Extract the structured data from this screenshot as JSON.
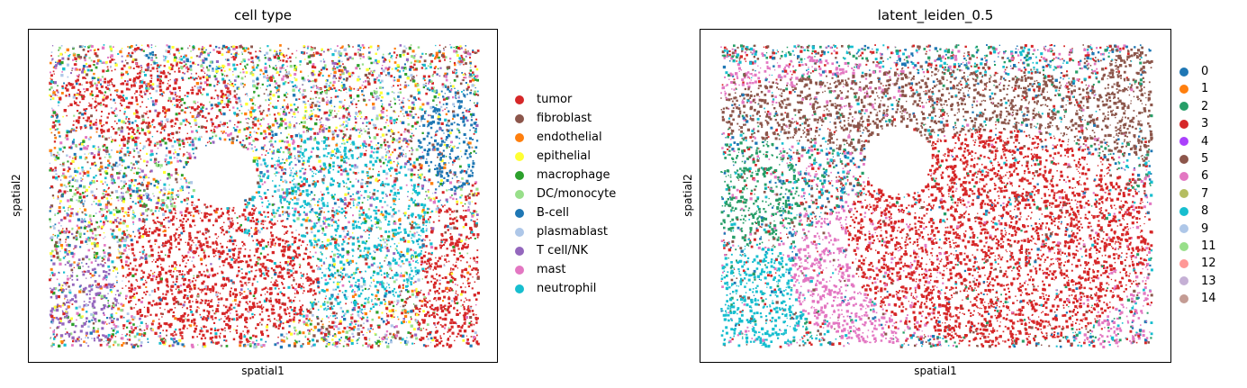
{
  "chart_data": [
    {
      "type": "scatter",
      "title": "cell type",
      "xlabel": "spatial1",
      "ylabel": "spatial2",
      "grid": false,
      "ticks": false,
      "legend_placement": "right, outside",
      "legend": [
        {
          "label": "tumor",
          "color": "#d62728"
        },
        {
          "label": "fibroblast",
          "color": "#8c564b"
        },
        {
          "label": "endothelial",
          "color": "#ff7f0e"
        },
        {
          "label": "epithelial",
          "color": "#ffff33"
        },
        {
          "label": "macrophage",
          "color": "#2ca02c"
        },
        {
          "label": "DC/monocyte",
          "color": "#98df8a"
        },
        {
          "label": "B-cell",
          "color": "#1f77b4"
        },
        {
          "label": "plasmablast",
          "color": "#aec7e8"
        },
        {
          "label": "T cell/NK",
          "color": "#9467bd"
        },
        {
          "label": "mast",
          "color": "#e377c2"
        },
        {
          "label": "neutrophil",
          "color": "#17becf"
        }
      ]
    },
    {
      "type": "scatter",
      "title": "latent_leiden_0.5",
      "xlabel": "spatial1",
      "ylabel": "spatial2",
      "grid": false,
      "ticks": false,
      "legend_placement": "right, outside",
      "legend": [
        {
          "label": "0",
          "color": "#1f77b4"
        },
        {
          "label": "1",
          "color": "#ff7f0e"
        },
        {
          "label": "2",
          "color": "#279e68"
        },
        {
          "label": "3",
          "color": "#d62728"
        },
        {
          "label": "4",
          "color": "#aa40fc"
        },
        {
          "label": "5",
          "color": "#8c564b"
        },
        {
          "label": "6",
          "color": "#e377c2"
        },
        {
          "label": "7",
          "color": "#b5bd61"
        },
        {
          "label": "8",
          "color": "#17becf"
        },
        {
          "label": "9",
          "color": "#aec7e8"
        },
        {
          "label": "11",
          "color": "#98df8a"
        },
        {
          "label": "12",
          "color": "#ff9896"
        },
        {
          "label": "13",
          "color": "#c5b0d5"
        },
        {
          "label": "14",
          "color": "#c49c94"
        }
      ]
    }
  ]
}
